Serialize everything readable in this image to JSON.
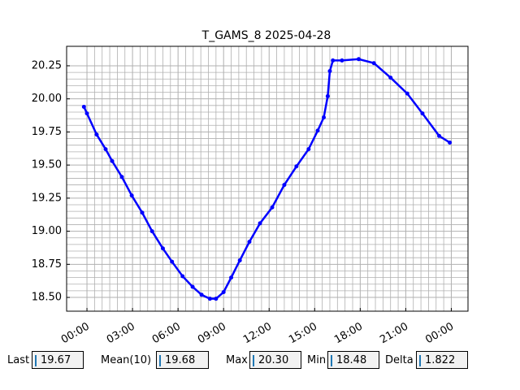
{
  "chart_data": {
    "type": "line",
    "title": "T_GAMS_8 2025-04-28",
    "x": [
      -0.2,
      0,
      0.64,
      1.23,
      1.66,
      2.3,
      2.95,
      3.64,
      4.29,
      5.0,
      5.6,
      6.3,
      6.96,
      7.55,
      8.1,
      8.5,
      9.0,
      9.5,
      10.07,
      10.7,
      11.4,
      12.2,
      13.0,
      13.8,
      14.6,
      15.2,
      15.6,
      15.86,
      16.0,
      16.2,
      16.8,
      17.9,
      18.9,
      20.0,
      21.1,
      22.1,
      23.2,
      23.9
    ],
    "series": [
      {
        "color": "#0000ff",
        "values": [
          19.94,
          19.89,
          19.73,
          19.62,
          19.53,
          19.41,
          19.27,
          19.14,
          19.0,
          18.87,
          18.77,
          18.66,
          18.58,
          18.52,
          18.49,
          18.49,
          18.54,
          18.65,
          18.78,
          18.92,
          19.06,
          19.18,
          19.35,
          19.49,
          19.62,
          19.76,
          19.86,
          20.02,
          20.21,
          20.29,
          20.29,
          20.3,
          20.27,
          20.16,
          20.04,
          19.89,
          19.72,
          19.67
        ]
      }
    ],
    "xlim": [
      -1.34,
      25.1
    ],
    "ylim": [
      18.396,
      20.397
    ],
    "xticks": [
      {
        "value": 0,
        "label": "00:00"
      },
      {
        "value": 3,
        "label": "03:00"
      },
      {
        "value": 6,
        "label": "06:00"
      },
      {
        "value": 9,
        "label": "09:00"
      },
      {
        "value": 12,
        "label": "12:00"
      },
      {
        "value": 15,
        "label": "15:00"
      },
      {
        "value": 18,
        "label": "18:00"
      },
      {
        "value": 21,
        "label": "21:00"
      },
      {
        "value": 24,
        "label": "00:00"
      }
    ],
    "yticks": [
      {
        "value": 18.5,
        "label": "18.50"
      },
      {
        "value": 18.75,
        "label": "18.75"
      },
      {
        "value": 19,
        "label": "19.00"
      },
      {
        "value": 19.25,
        "label": "19.25"
      },
      {
        "value": 19.5,
        "label": "19.50"
      },
      {
        "value": 19.75,
        "label": "19.75"
      },
      {
        "value": 20,
        "label": "20.00"
      },
      {
        "value": 20.25,
        "label": "20.25"
      }
    ],
    "grid": true
  },
  "widgets": [
    {
      "label": "Last",
      "value": "19.67"
    },
    {
      "label": "Mean(10)",
      "value": "19.68"
    },
    {
      "label": "Max",
      "value": "20.30"
    },
    {
      "label": "Min",
      "value": "18.48"
    },
    {
      "label": "Delta",
      "value": "1.822"
    }
  ]
}
